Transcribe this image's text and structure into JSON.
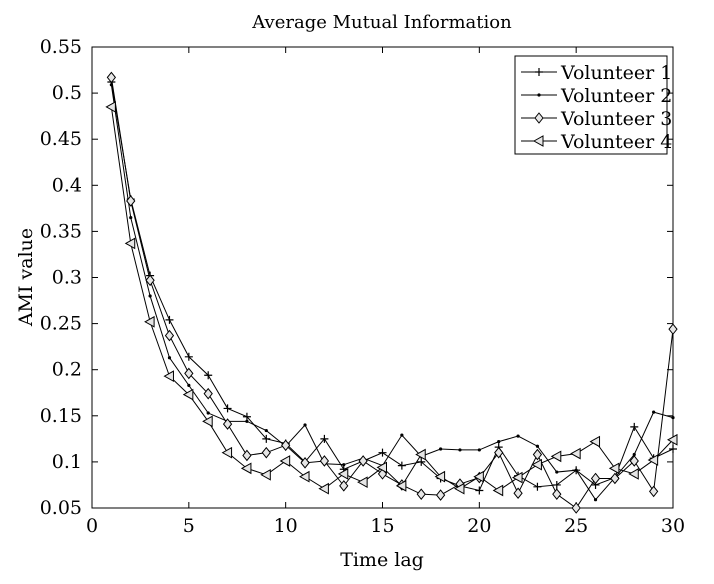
{
  "chart_data": {
    "type": "line",
    "title": "Average Mutual Information",
    "xlabel": "Time lag",
    "ylabel": "AMI value",
    "xlim": [
      0,
      30
    ],
    "ylim": [
      0.05,
      0.55
    ],
    "xticks": [
      0,
      5,
      10,
      15,
      20,
      25,
      30
    ],
    "yticks": [
      0.05,
      0.1,
      0.15,
      0.2,
      0.25,
      0.3,
      0.35,
      0.4,
      0.45,
      0.5,
      0.55
    ],
    "grid": false,
    "legend_position": "top-right",
    "x": [
      1,
      2,
      3,
      4,
      5,
      6,
      7,
      8,
      9,
      10,
      11,
      12,
      13,
      14,
      15,
      16,
      17,
      18,
      19,
      20,
      21,
      22,
      23,
      24,
      25,
      26,
      27,
      28,
      29,
      30
    ],
    "series": [
      {
        "name": "Volunteer 1",
        "marker": "plus",
        "values": [
          0.512,
          0.385,
          0.302,
          0.254,
          0.214,
          0.194,
          0.158,
          0.149,
          0.125,
          0.12,
          0.1,
          0.125,
          0.092,
          0.101,
          0.11,
          0.096,
          0.1,
          0.082,
          0.074,
          0.069,
          0.116,
          0.085,
          0.073,
          0.075,
          0.091,
          0.075,
          0.083,
          0.138,
          0.104,
          0.114
        ]
      },
      {
        "name": "Volunteer 2",
        "marker": "dot",
        "values": [
          0.509,
          0.365,
          0.28,
          0.213,
          0.183,
          0.153,
          0.144,
          0.144,
          0.134,
          0.117,
          0.14,
          0.098,
          0.097,
          0.104,
          0.096,
          0.129,
          0.106,
          0.114,
          0.113,
          0.113,
          0.122,
          0.128,
          0.117,
          0.089,
          0.091,
          0.059,
          0.083,
          0.108,
          0.154,
          0.148
        ]
      },
      {
        "name": "Volunteer 3",
        "marker": "diamond",
        "values": [
          0.517,
          0.383,
          0.297,
          0.237,
          0.196,
          0.174,
          0.141,
          0.107,
          0.11,
          0.118,
          0.099,
          0.101,
          0.074,
          0.101,
          0.087,
          0.075,
          0.065,
          0.064,
          0.076,
          0.083,
          0.11,
          0.066,
          0.108,
          0.065,
          0.05,
          0.082,
          0.082,
          0.101,
          0.068,
          0.244
        ]
      },
      {
        "name": "Volunteer 4",
        "marker": "triangle-left",
        "values": [
          0.485,
          0.337,
          0.252,
          0.193,
          0.173,
          0.144,
          0.11,
          0.093,
          0.086,
          0.101,
          0.084,
          0.071,
          0.087,
          0.078,
          0.094,
          0.074,
          0.108,
          0.084,
          0.071,
          0.084,
          0.069,
          0.083,
          0.097,
          0.106,
          0.109,
          0.122,
          0.093,
          0.087,
          0.102,
          0.124
        ]
      }
    ]
  }
}
